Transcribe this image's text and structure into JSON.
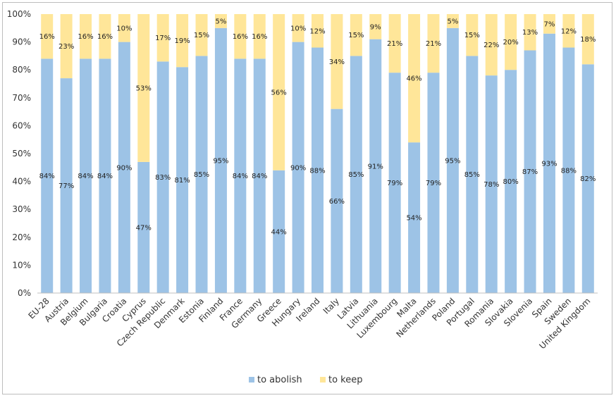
{
  "chart_data": {
    "type": "bar",
    "stacked": true,
    "percent": true,
    "categories": [
      "EU-28",
      "Austria",
      "Belgium",
      "Bulgaria",
      "Croatia",
      "Cyprus",
      "Czech Republic",
      "Denmark",
      "Estonia",
      "Finland",
      "France",
      "Germany",
      "Greece",
      "Hungary",
      "Ireland",
      "Italy",
      "Latvia",
      "Lithuania",
      "Luxembourg",
      "Malta",
      "Netherlands",
      "Poland",
      "Portugal",
      "Romania",
      "Slovakia",
      "Slovenia",
      "Spain",
      "Sweden",
      "United Kingdom"
    ],
    "series": [
      {
        "name": "to abolish",
        "color": "#9dc3e6",
        "values": [
          84,
          77,
          84,
          84,
          90,
          47,
          83,
          81,
          85,
          95,
          84,
          84,
          44,
          90,
          88,
          66,
          85,
          91,
          79,
          54,
          79,
          95,
          85,
          78,
          80,
          87,
          93,
          88,
          82
        ]
      },
      {
        "name": "to keep",
        "color": "#ffe699",
        "values": [
          16,
          23,
          16,
          16,
          10,
          53,
          17,
          19,
          15,
          5,
          16,
          16,
          56,
          10,
          12,
          34,
          15,
          9,
          21,
          46,
          21,
          5,
          15,
          22,
          20,
          13,
          7,
          12,
          18
        ]
      }
    ],
    "value_suffix": "%",
    "ylim": [
      0,
      100
    ],
    "yticks": [
      "0%",
      "10%",
      "20%",
      "30%",
      "40%",
      "50%",
      "60%",
      "70%",
      "80%",
      "90%",
      "100%"
    ],
    "grid": false,
    "legend_position": "bottom"
  }
}
